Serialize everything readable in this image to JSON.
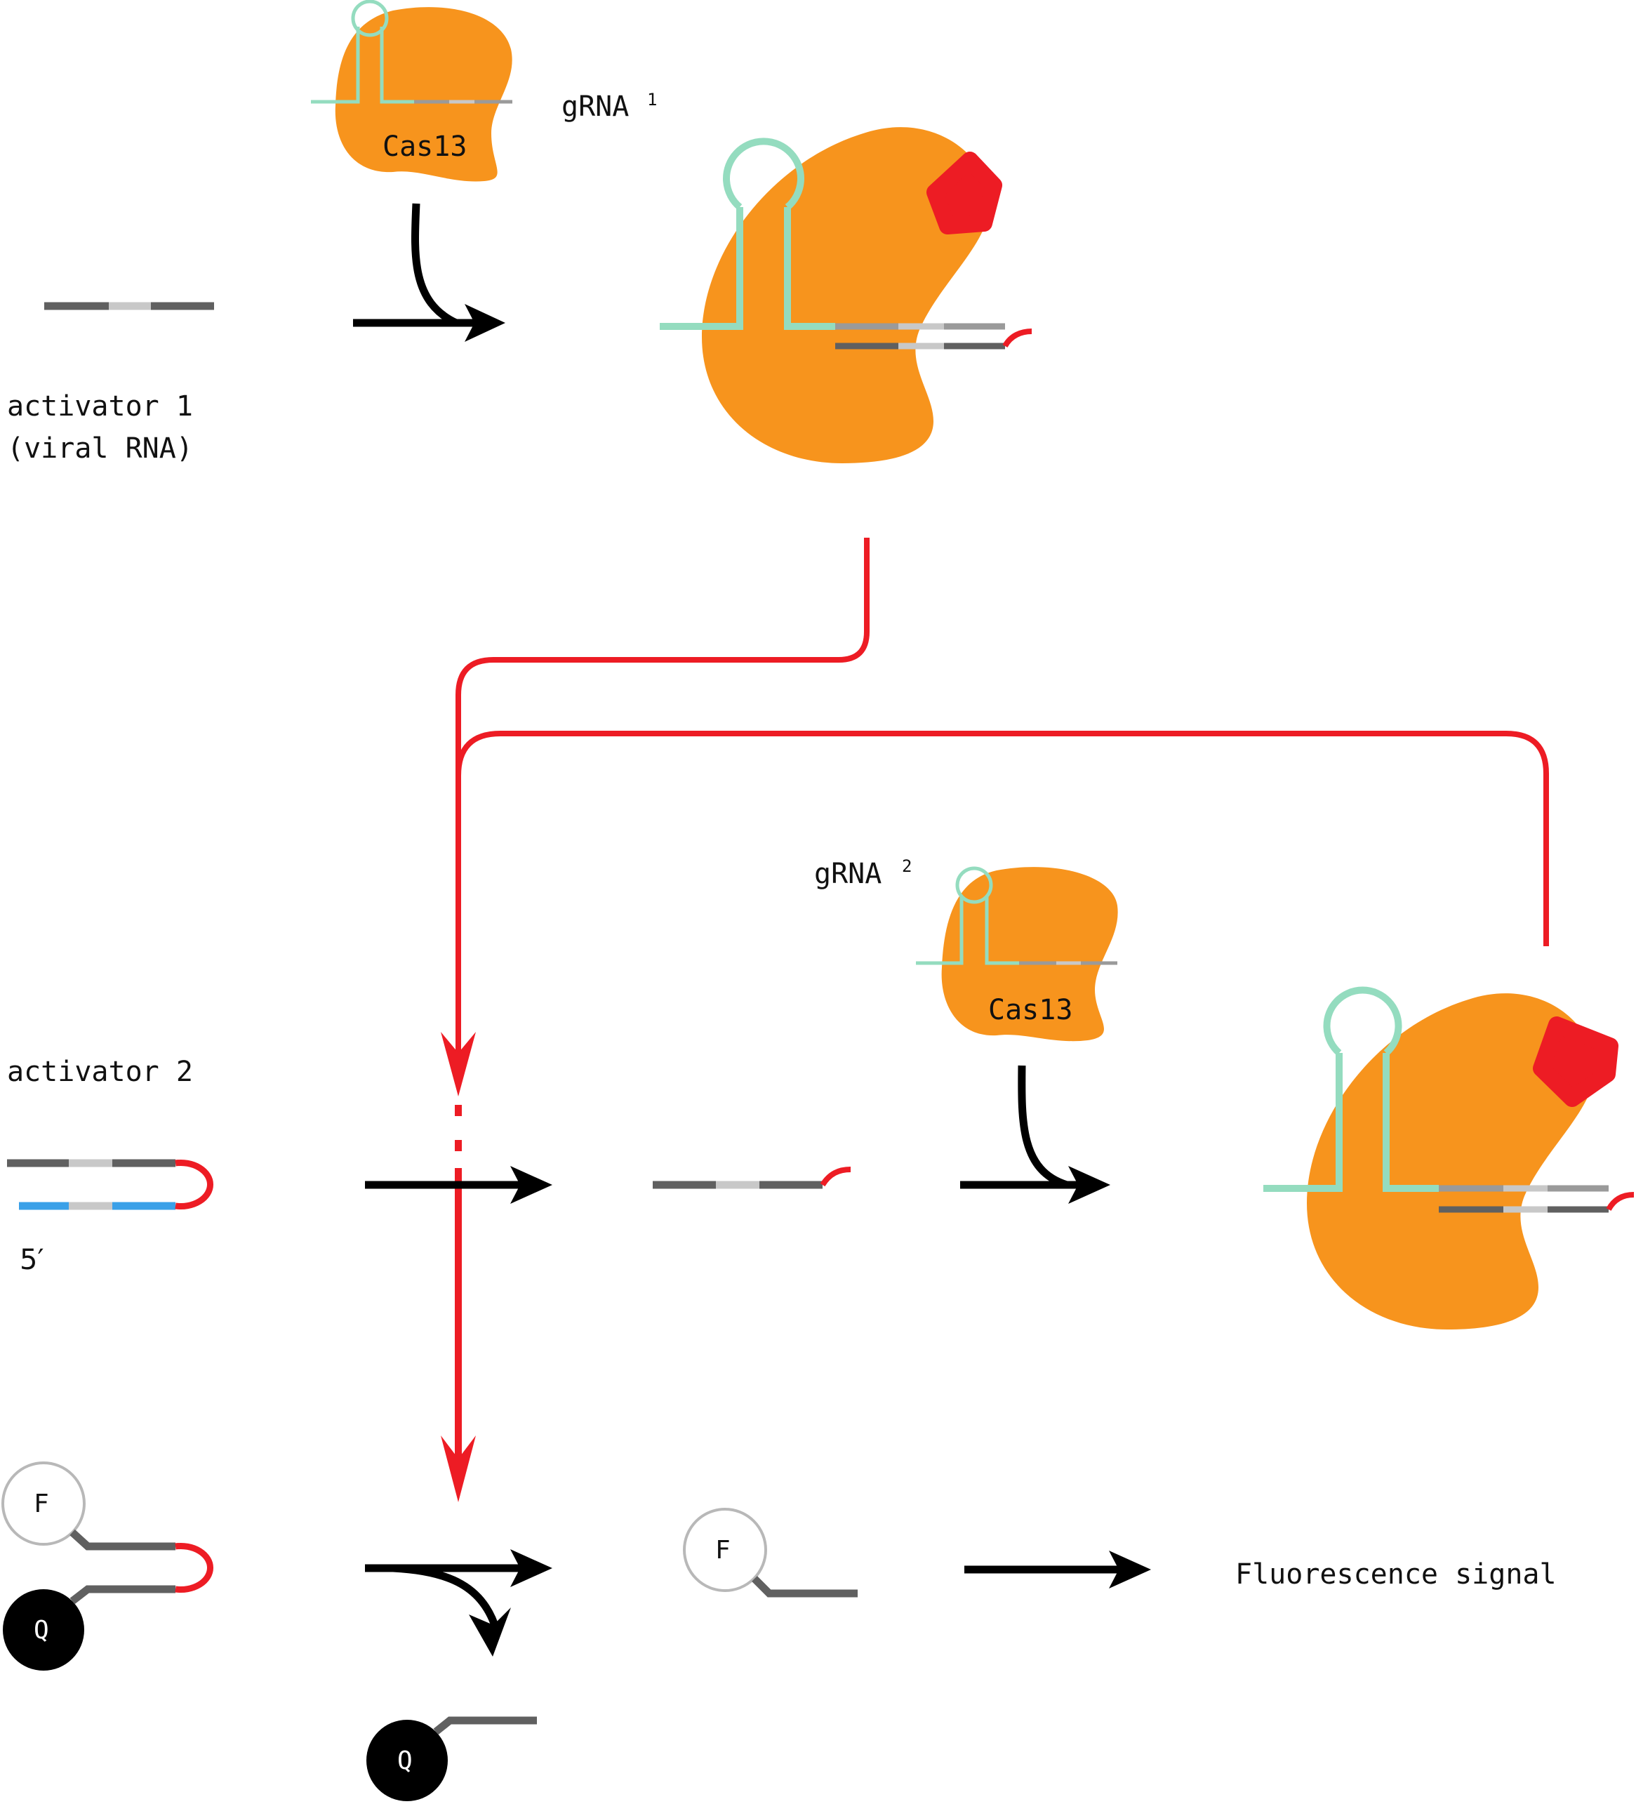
{
  "labels": {
    "grna1": "gRNA",
    "grna1_sup": "1",
    "grna2": "gRNA",
    "grna2_sup": "2",
    "cas13_top": "Cas13",
    "cas13_mid": "Cas13",
    "activator1_line1": "activator 1",
    "activator1_line2": "(viral RNA)",
    "activator2": "activator 2",
    "five_prime": "5′",
    "fluor_F1": "F",
    "fluor_F2": "F",
    "quench_Q1": "Q",
    "quench_Q2": "Q",
    "signal": "Fluorescence signal"
  },
  "colors": {
    "cas13": "#f7941d",
    "grna": "#94dcbf",
    "active_red": "#ed1c24",
    "arrow": "#000000",
    "rna_dark": "#606060",
    "rna_light": "#c8c8c8",
    "rna_mid": "#9a9a9a",
    "blue_strand": "#3aa0e8",
    "fluor_outline": "#b8b8b8",
    "quencher": "#000000"
  },
  "icons": {
    "active_marker": "red-star-blob-icon"
  }
}
